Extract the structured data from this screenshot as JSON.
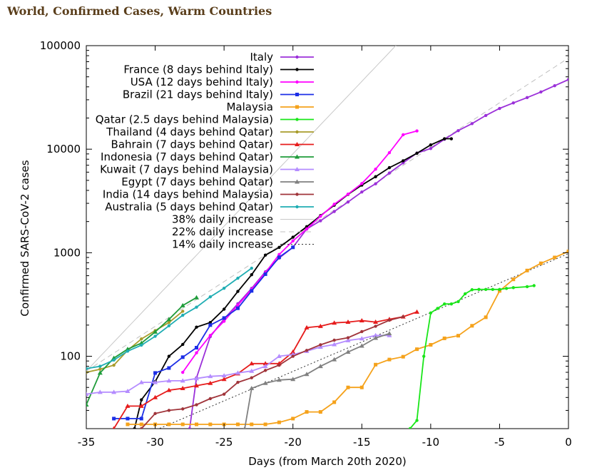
{
  "page": {
    "title": "World, Confirmed Cases, Warm Countries"
  },
  "chart_data": {
    "type": "line",
    "title": "World, Confirmed Cases, Warm Countries",
    "xlabel": "Days (from March 20th 2020)",
    "ylabel": "Confirmed SARS-CoV-2 cases",
    "xlim": [
      -35,
      0
    ],
    "ylim": [
      20,
      100000
    ],
    "yscale": "log",
    "xticks": [
      -35,
      -30,
      -25,
      -20,
      -15,
      -10,
      -5,
      0
    ],
    "xtick_labels": [
      "-35",
      "-30",
      "-25",
      "-20",
      "-15",
      "-10",
      "-5",
      "0"
    ],
    "yticks": [
      100,
      1000,
      10000,
      100000
    ],
    "ytick_labels": [
      "100",
      "1000",
      "10000",
      "100000"
    ],
    "legend_position": "top-left",
    "series": [
      {
        "name": "Italy",
        "color": "#9b30d9",
        "marker": "dot",
        "x": [
          -27.5,
          -27,
          -26,
          -25,
          -24,
          -23,
          -22,
          -21,
          -20,
          -19,
          -18,
          -17,
          -16,
          -15,
          -14,
          -13,
          -12,
          -11,
          -10,
          -9,
          -8,
          -7,
          -6,
          -5,
          -4,
          -3,
          -2,
          -1,
          0
        ],
        "y": [
          20,
          62,
          155,
          229,
          322,
          453,
          655,
          888,
          1128,
          1694,
          2036,
          2502,
          3089,
          3858,
          4636,
          5883,
          7375,
          9172,
          10149,
          12462,
          15113,
          17660,
          21157,
          24747,
          27980,
          31506,
          35713,
          41035,
          47021
        ]
      },
      {
        "name": "France (8 days behind Italy)",
        "color": "#000000",
        "marker": "dot",
        "x": [
          -31.5,
          -31,
          -30,
          -29,
          -28,
          -27,
          -26,
          -25,
          -24,
          -23,
          -22,
          -21,
          -20,
          -19,
          -18,
          -17,
          -16,
          -15,
          -14,
          -13,
          -12,
          -11,
          -10,
          -9,
          -8.5
        ],
        "y": [
          20,
          38,
          57,
          100,
          130,
          191,
          212,
          285,
          423,
          613,
          949,
          1126,
          1412,
          1784,
          2281,
          2876,
          3661,
          4499,
          5423,
          6633,
          7730,
          9134,
          10995,
          12612,
          12612
        ]
      },
      {
        "name": "USA (12 days behind Italy)",
        "color": "#ff00ff",
        "marker": "dot",
        "x": [
          -28,
          -27,
          -26,
          -25,
          -24,
          -23,
          -22,
          -21,
          -20,
          -19,
          -18,
          -17,
          -16,
          -15,
          -14,
          -13,
          -12,
          -11
        ],
        "y": [
          70,
          108,
          159,
          218,
          312,
          442,
          640,
          962,
          1301,
          1697,
          2247,
          2943,
          3680,
          4663,
          6411,
          9259,
          13789,
          15000
        ]
      },
      {
        "name": "Brazil (21 days behind Italy)",
        "color": "#1c2ee6",
        "marker": "square",
        "x": [
          -33,
          -32,
          -31,
          -30,
          -29,
          -28,
          -27,
          -26,
          -25,
          -24,
          -23,
          -22,
          -21,
          -20
        ],
        "y": [
          25,
          25,
          25,
          69,
          77,
          98,
          121,
          200,
          234,
          291,
          428,
          621,
          904,
          1128
        ]
      },
      {
        "name": "Malaysia",
        "color": "#f5a21b",
        "marker": "square",
        "x": [
          -32,
          -31,
          -30,
          -29,
          -28,
          -27,
          -26,
          -25,
          -24,
          -23,
          -22,
          -21,
          -20,
          -19,
          -18,
          -17,
          -16,
          -15,
          -14,
          -13,
          -12,
          -11,
          -10,
          -9,
          -8,
          -7,
          -6,
          -5,
          -4,
          -3,
          -2,
          -1,
          0
        ],
        "y": [
          22,
          22,
          22,
          22,
          22,
          22,
          22,
          22,
          22,
          22,
          22,
          23,
          25,
          29,
          29,
          36,
          50,
          50,
          83,
          93,
          99,
          117,
          129,
          149,
          158,
          197,
          238,
          428,
          553,
          673,
          790,
          900,
          1030
        ]
      },
      {
        "name": "Qatar (2.5 days behind Malaysia)",
        "color": "#19e619",
        "marker": "dot",
        "x": [
          -11.5,
          -11,
          -10.5,
          -10,
          -9.5,
          -9,
          -8.5,
          -8,
          -7.5,
          -7,
          -6.5,
          -6,
          -5.5,
          -5,
          -4.5,
          -4,
          -3,
          -2.5
        ],
        "y": [
          20,
          24,
          100,
          262,
          290,
          320,
          320,
          337,
          401,
          439,
          442,
          442,
          442,
          442,
          452,
          460,
          470,
          481
        ]
      },
      {
        "name": "Thailand  (4 days behind Qatar)",
        "color": "#a89c2c",
        "marker": "dot",
        "x": [
          -35,
          -34,
          -33,
          -32,
          -31,
          -30,
          -29,
          -28
        ],
        "y": [
          70,
          75,
          82,
          114,
          147,
          177,
          212,
          272
        ]
      },
      {
        "name": "Bahrain (7 days behind Qatar)",
        "color": "#e61c1c",
        "marker": "triangle",
        "x": [
          -33,
          -32,
          -31,
          -30,
          -29,
          -28,
          -27,
          -26,
          -25,
          -24,
          -23,
          -22,
          -21,
          -20,
          -19,
          -18,
          -17,
          -16,
          -15,
          -14,
          -13,
          -12,
          -11
        ],
        "y": [
          20,
          33,
          33,
          40,
          47,
          49,
          52,
          55,
          60,
          68,
          85,
          85,
          85,
          110,
          189,
          195,
          210,
          214,
          221,
          214,
          228,
          241,
          268
        ]
      },
      {
        "name": "Indonesia (7 days behind Qatar)",
        "color": "#1f9c3a",
        "marker": "triangle",
        "x": [
          -35,
          -34,
          -33,
          -32,
          -31,
          -30,
          -29,
          -28,
          -27
        ],
        "y": [
          34,
          69,
          96,
          117,
          134,
          172,
          227,
          309,
          369
        ]
      },
      {
        "name": "Kuwait (7 days behind Malaysia)",
        "color": "#b48cff",
        "marker": "triangle",
        "x": [
          -35,
          -34,
          -33,
          -32,
          -31,
          -30,
          -29,
          -28,
          -27,
          -26,
          -25,
          -24,
          -23,
          -22,
          -21,
          -20,
          -19,
          -18,
          -17,
          -16,
          -15,
          -14,
          -13
        ],
        "y": [
          43,
          45,
          45,
          46,
          56,
          56,
          58,
          58,
          61,
          64,
          65,
          69,
          72,
          80,
          100,
          104,
          112,
          123,
          130,
          142,
          148,
          159,
          159
        ]
      },
      {
        "name": "Egypt (7 days behind Qatar)",
        "color": "#808080",
        "marker": "triangle",
        "x": [
          -23.5,
          -23,
          -22,
          -21,
          -20,
          -19,
          -18,
          -17,
          -16,
          -15,
          -14,
          -13
        ],
        "y": [
          20,
          49,
          55,
          59,
          60,
          67,
          80,
          93,
          110,
          126,
          150,
          166
        ]
      },
      {
        "name": "India (14 days behind Malaysia)",
        "color": "#a0343a",
        "marker": "dot",
        "x": [
          -31,
          -30,
          -29,
          -28,
          -27,
          -26,
          -25,
          -24,
          -23,
          -22,
          -21,
          -20,
          -19,
          -18,
          -17,
          -16,
          -15,
          -14,
          -13,
          -12
        ],
        "y": [
          20,
          28,
          30,
          31,
          34,
          39,
          43,
          56,
          62,
          73,
          82,
          100,
          114,
          129,
          143,
          151,
          173,
          195,
          223,
          241
        ]
      },
      {
        "name": "Australia (5 days behind Qatar)",
        "color": "#1fadb3",
        "marker": "dot",
        "x": [
          -35,
          -34,
          -33,
          -32,
          -31,
          -30,
          -29,
          -28,
          -27,
          -26,
          -25,
          -24,
          -23
        ],
        "y": [
          76,
          80,
          92,
          112,
          128,
          156,
          197,
          249,
          298,
          375,
          454,
          568,
          709
        ]
      }
    ],
    "reference_lines": [
      {
        "name": "38% daily increase",
        "color": "#c8c8c8",
        "style": "solid",
        "growth": 1.38,
        "x0": -35,
        "y0": 72
      },
      {
        "name": "22% daily increase",
        "color": "#c0c0c0",
        "style": "dashed",
        "growth": 1.22,
        "x0": -35,
        "y0": 72
      },
      {
        "name": "14% daily increase",
        "color": "#303030",
        "style": "dotted",
        "growth": 1.14,
        "x0": -33,
        "y0": 13
      }
    ]
  }
}
